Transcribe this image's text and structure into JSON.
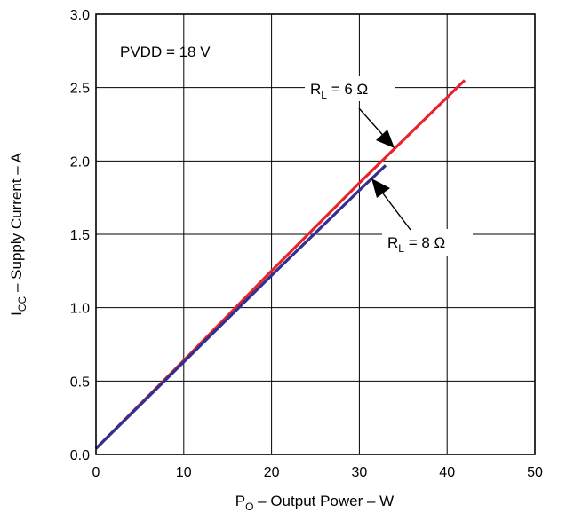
{
  "chart_data": {
    "type": "line",
    "xlabel": {
      "prefix": "P",
      "sub": "O",
      "rest": " – Output Power – W"
    },
    "ylabel": {
      "prefix": "I",
      "sub": "CC",
      "rest": " – Supply Current – A"
    },
    "xlim": [
      0,
      50
    ],
    "ylim": [
      0,
      3
    ],
    "xticks": [
      0,
      10,
      20,
      30,
      40,
      50
    ],
    "xtick_labels": [
      "0",
      "10",
      "20",
      "30",
      "40",
      "50"
    ],
    "yticks": [
      0,
      0.5,
      1,
      1.5,
      2,
      2.5,
      3
    ],
    "ytick_labels": [
      "0.0",
      "0.5",
      "1.0",
      "1.5",
      "2.0",
      "2.5",
      "3.0"
    ],
    "grid": true,
    "annotations": [
      {
        "text": "PVDD = 18 V"
      }
    ],
    "series": [
      {
        "name": "R_L = 6 Ω",
        "label": {
          "prefix": "R",
          "sub": "L",
          "rest": " = 6 Ω"
        },
        "color": "#e8232a",
        "x": [
          0,
          10,
          20,
          30,
          42
        ],
        "y": [
          0.04,
          0.64,
          1.25,
          1.85,
          2.55
        ]
      },
      {
        "name": "R_L = 8 Ω",
        "label": {
          "prefix": "R",
          "sub": "L",
          "rest": " = 8 Ω"
        },
        "color": "#2e3192",
        "x": [
          0,
          10,
          20,
          30,
          33
        ],
        "y": [
          0.04,
          0.63,
          1.22,
          1.8,
          1.97
        ]
      }
    ]
  }
}
